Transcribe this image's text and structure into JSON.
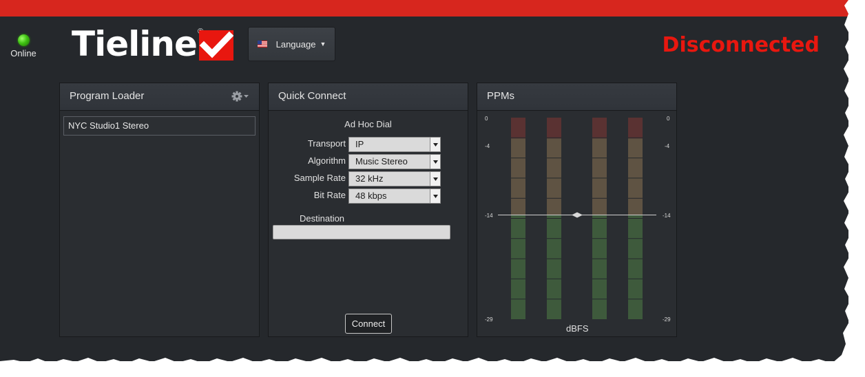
{
  "header": {
    "status_label": "Online",
    "logo_text": "Tieline",
    "logo_registered": "®",
    "language_button": "Language",
    "connection_status": "Disconnected"
  },
  "program_loader": {
    "title": "Program Loader",
    "items": [
      "NYC Studio1 Stereo"
    ]
  },
  "quick_connect": {
    "title": "Quick Connect",
    "subtitle": "Ad Hoc Dial",
    "fields": [
      {
        "label": "Transport",
        "value": "IP"
      },
      {
        "label": "Algorithm",
        "value": "Music Stereo"
      },
      {
        "label": "Sample Rate",
        "value": "32 kHz"
      },
      {
        "label": "Bit Rate",
        "value": "48 kbps"
      }
    ],
    "destination_label": "Destination",
    "destination_value": "",
    "connect_button": "Connect"
  },
  "ppms": {
    "title": "PPMs",
    "scale_labels": [
      "0",
      "-4",
      "-14",
      "-29"
    ],
    "scale_values": [
      0,
      -4,
      -14,
      -29
    ],
    "unit": "dBFS",
    "meter_count": 4,
    "reference_level": -14
  },
  "colors": {
    "top_bar": "#d7261e",
    "status_led": "#3fc212",
    "disconnected": "#e8170f",
    "meter_green": "#3e5a3c",
    "meter_amber": "#5f5343",
    "meter_red": "#5a3232"
  }
}
